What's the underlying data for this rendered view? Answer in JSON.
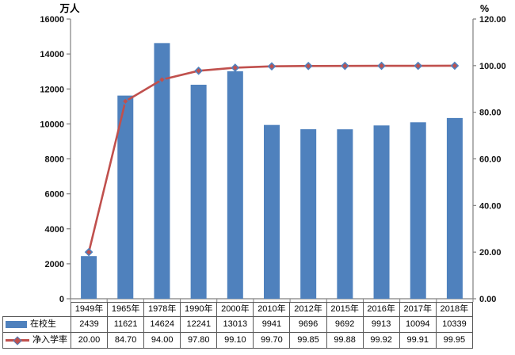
{
  "chart_data": {
    "type": "bar+line",
    "title": "",
    "categories": [
      "1949年",
      "1965年",
      "1978年",
      "1990年",
      "2000年",
      "2010年",
      "2012年",
      "2015年",
      "2016年",
      "2017年",
      "2018年"
    ],
    "series": [
      {
        "name": "在校生",
        "type": "bar",
        "axis": "left",
        "color": "#4F81BD",
        "values": [
          2439,
          11621,
          14624,
          12241,
          13013,
          9941,
          9696,
          9692,
          9913,
          10094,
          10339
        ],
        "value_labels": [
          "2439",
          "11621",
          "14624",
          "12241",
          "13013",
          "9941",
          "9696",
          "9692",
          "9913",
          "10094",
          "10339"
        ]
      },
      {
        "name": "净入学率",
        "type": "line",
        "axis": "right",
        "color": "#C0504D",
        "marker_fill": "#C0504D",
        "marker_edge": "#4F81BD",
        "values": [
          20.0,
          84.7,
          94.0,
          97.8,
          99.1,
          99.7,
          99.85,
          99.88,
          99.92,
          99.91,
          99.95
        ],
        "value_labels": [
          "20.00",
          "84.70",
          "94.00",
          "97.80",
          "99.10",
          "99.70",
          "99.85",
          "99.88",
          "99.92",
          "99.91",
          "99.95"
        ]
      }
    ],
    "left_axis": {
      "unit_label": "万人",
      "min": 0,
      "max": 16000,
      "tick_labels": [
        "0",
        "2000",
        "4000",
        "6000",
        "8000",
        "10000",
        "12000",
        "14000",
        "16000"
      ]
    },
    "right_axis": {
      "unit_label": "%",
      "min": 0,
      "max": 120,
      "tick_labels": [
        "0.00",
        "20.00",
        "40.00",
        "60.00",
        "80.00",
        "100.00",
        "120.00"
      ]
    },
    "grid": false,
    "legend_position": "data-table-left",
    "axis_color": "#808080",
    "tick_label_color": "#111111",
    "table_border_color": "#595959"
  }
}
